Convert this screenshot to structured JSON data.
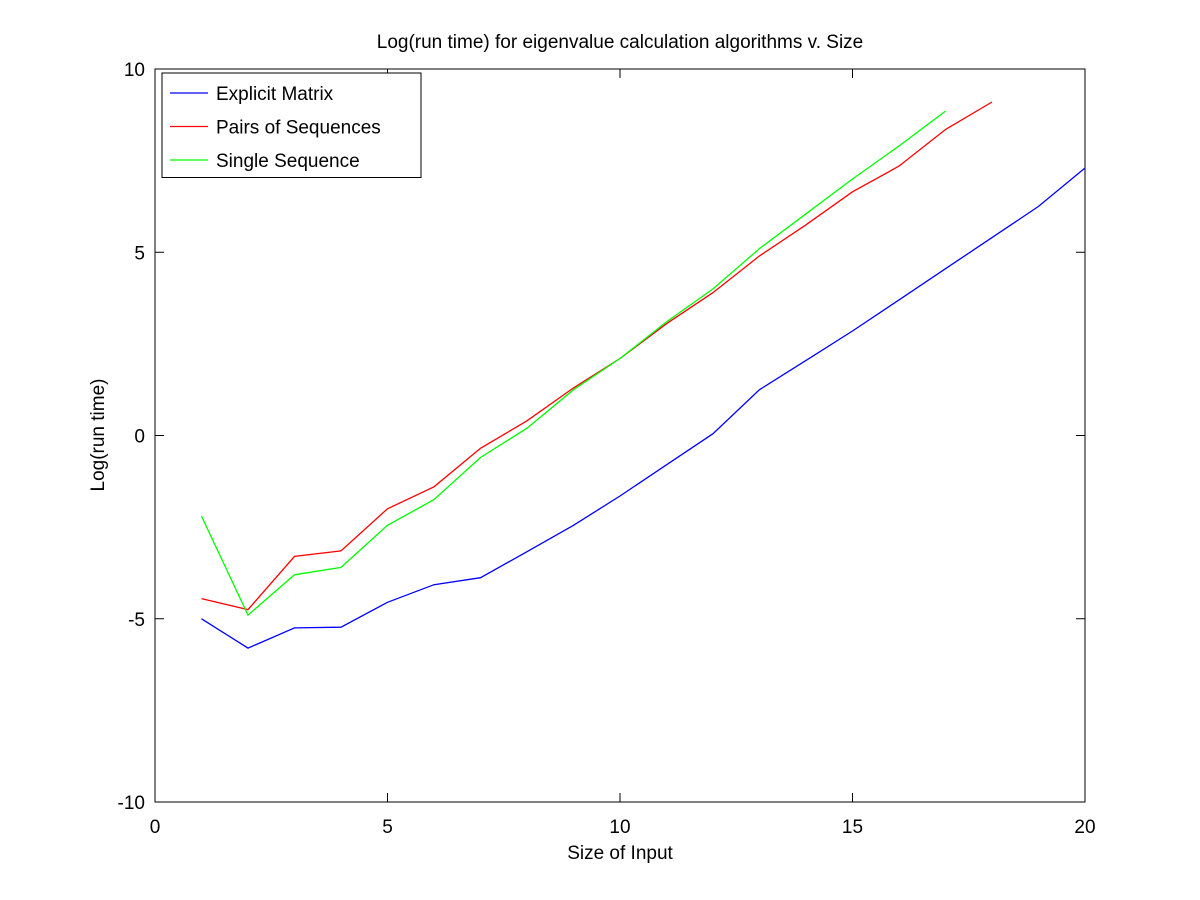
{
  "chart_data": {
    "type": "line",
    "title": "Log(run time) for eigenvalue calculation algorithms v. Size",
    "xlabel": "Size of Input",
    "ylabel": "Log(run time)",
    "xlim": [
      0,
      20
    ],
    "ylim": [
      -10,
      10
    ],
    "xticks": [
      0,
      5,
      10,
      15,
      20
    ],
    "yticks": [
      -10,
      -5,
      0,
      5,
      10
    ],
    "grid": false,
    "legend_position": "top-left",
    "series": [
      {
        "name": "Explicit Matrix",
        "color": "#0000ff",
        "x": [
          1,
          2,
          3,
          4,
          5,
          6,
          7,
          8,
          9,
          10,
          11,
          12,
          13,
          14,
          15,
          16,
          17,
          18,
          19,
          20
        ],
        "y": [
          -5.0,
          -5.8,
          -5.25,
          -5.23,
          -4.55,
          -4.07,
          -3.88,
          -3.17,
          -2.45,
          -1.65,
          -0.8,
          0.05,
          1.25,
          2.05,
          2.85,
          3.7,
          4.55,
          5.4,
          6.25,
          7.3
        ]
      },
      {
        "name": "Pairs of Sequences",
        "color": "#ff0000",
        "x": [
          1,
          2,
          3,
          4,
          5,
          6,
          7,
          8,
          9,
          10,
          11,
          12,
          13,
          14,
          15,
          16,
          17,
          18
        ],
        "y": [
          -4.45,
          -4.75,
          -3.3,
          -3.15,
          -2.0,
          -1.4,
          -0.35,
          0.4,
          1.3,
          2.1,
          3.05,
          3.9,
          4.9,
          5.75,
          6.65,
          7.35,
          8.35,
          9.1
        ]
      },
      {
        "name": "Single Sequence",
        "color": "#00ff00",
        "x": [
          1,
          2,
          3,
          4,
          5,
          6,
          7,
          8,
          9,
          10,
          11,
          12,
          13,
          14,
          15,
          16,
          17
        ],
        "y": [
          -2.2,
          -4.9,
          -3.8,
          -3.6,
          -2.45,
          -1.75,
          -0.6,
          0.2,
          1.25,
          2.1,
          3.1,
          4.0,
          5.1,
          6.05,
          7.0,
          7.9,
          8.85
        ]
      }
    ]
  }
}
